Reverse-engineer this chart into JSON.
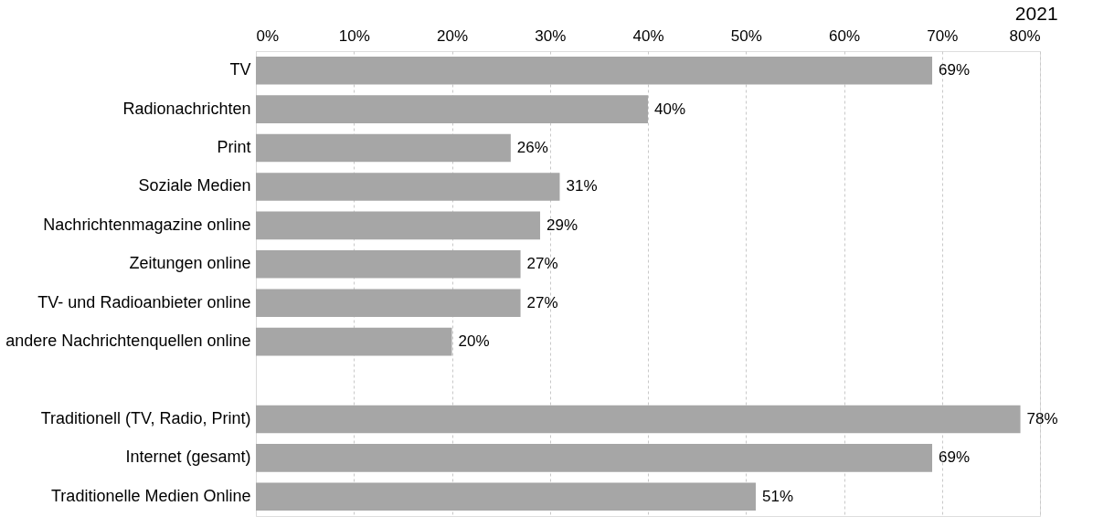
{
  "chart_data": {
    "type": "bar",
    "orientation": "horizontal",
    "title": "2021",
    "categories": [
      "TV",
      "Radionachrichten",
      "Print",
      "Soziale Medien",
      "Nachrichtenmagazine online",
      "Zeitungen online",
      "TV- und Radioanbieter online",
      "andere Nachrichtenquellen online",
      null,
      "Traditionell (TV, Radio, Print)",
      "Internet (gesamt)",
      "Traditionelle Medien Online"
    ],
    "values": [
      69,
      40,
      26,
      31,
      29,
      27,
      27,
      20,
      null,
      78,
      69,
      51
    ],
    "value_labels": [
      "69%",
      "40%",
      "26%",
      "31%",
      "29%",
      "27%",
      "27%",
      "20%",
      null,
      "78%",
      "69%",
      "51%"
    ],
    "color": "#a6a6a6",
    "xlim": [
      0,
      80
    ],
    "xticks": [
      {
        "value": 0,
        "label": "0%"
      },
      {
        "value": 10,
        "label": "10%"
      },
      {
        "value": 20,
        "label": "20%"
      },
      {
        "value": 30,
        "label": "30%"
      },
      {
        "value": 40,
        "label": "40%"
      },
      {
        "value": 50,
        "label": "50%"
      },
      {
        "value": 60,
        "label": "60%"
      },
      {
        "value": 70,
        "label": "70%"
      },
      {
        "value": 80,
        "label": "80%"
      }
    ],
    "grid": "x"
  }
}
